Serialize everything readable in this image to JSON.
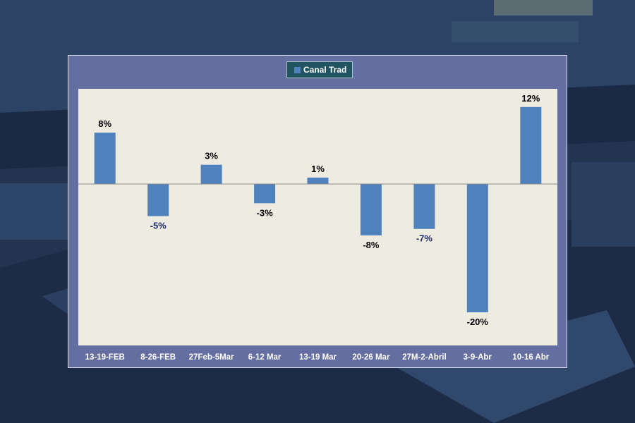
{
  "colors": {
    "bar": "#4f81bd",
    "plot_background": "#eeebe1",
    "frame_background": "#646ea0",
    "positive_label": "#000000",
    "negative_label_dark": "#1f2a6b",
    "tick_label": "#ffffff"
  },
  "chart_data": {
    "type": "bar",
    "title": "",
    "xlabel": "",
    "ylabel": "",
    "ylim": [
      -25,
      15
    ],
    "grid": false,
    "legend_position": "top-center",
    "categories": [
      "13-19-FEB",
      "8-26-FEB",
      "27Feb-5Mar",
      "6-12 Mar",
      "13-19 Mar",
      "20-26 Mar",
      "27M-2-Abril",
      "3-9-Abr",
      "10-16 Abr"
    ],
    "series": [
      {
        "name": "Canal Trad",
        "values": [
          8,
          -5,
          3,
          -3,
          1,
          -8,
          -7,
          -20,
          12
        ],
        "data_labels": [
          "8%",
          "-5%",
          "3%",
          "-3%",
          "1%",
          "-8%",
          "-7%",
          "-20%",
          "12%"
        ]
      }
    ]
  }
}
